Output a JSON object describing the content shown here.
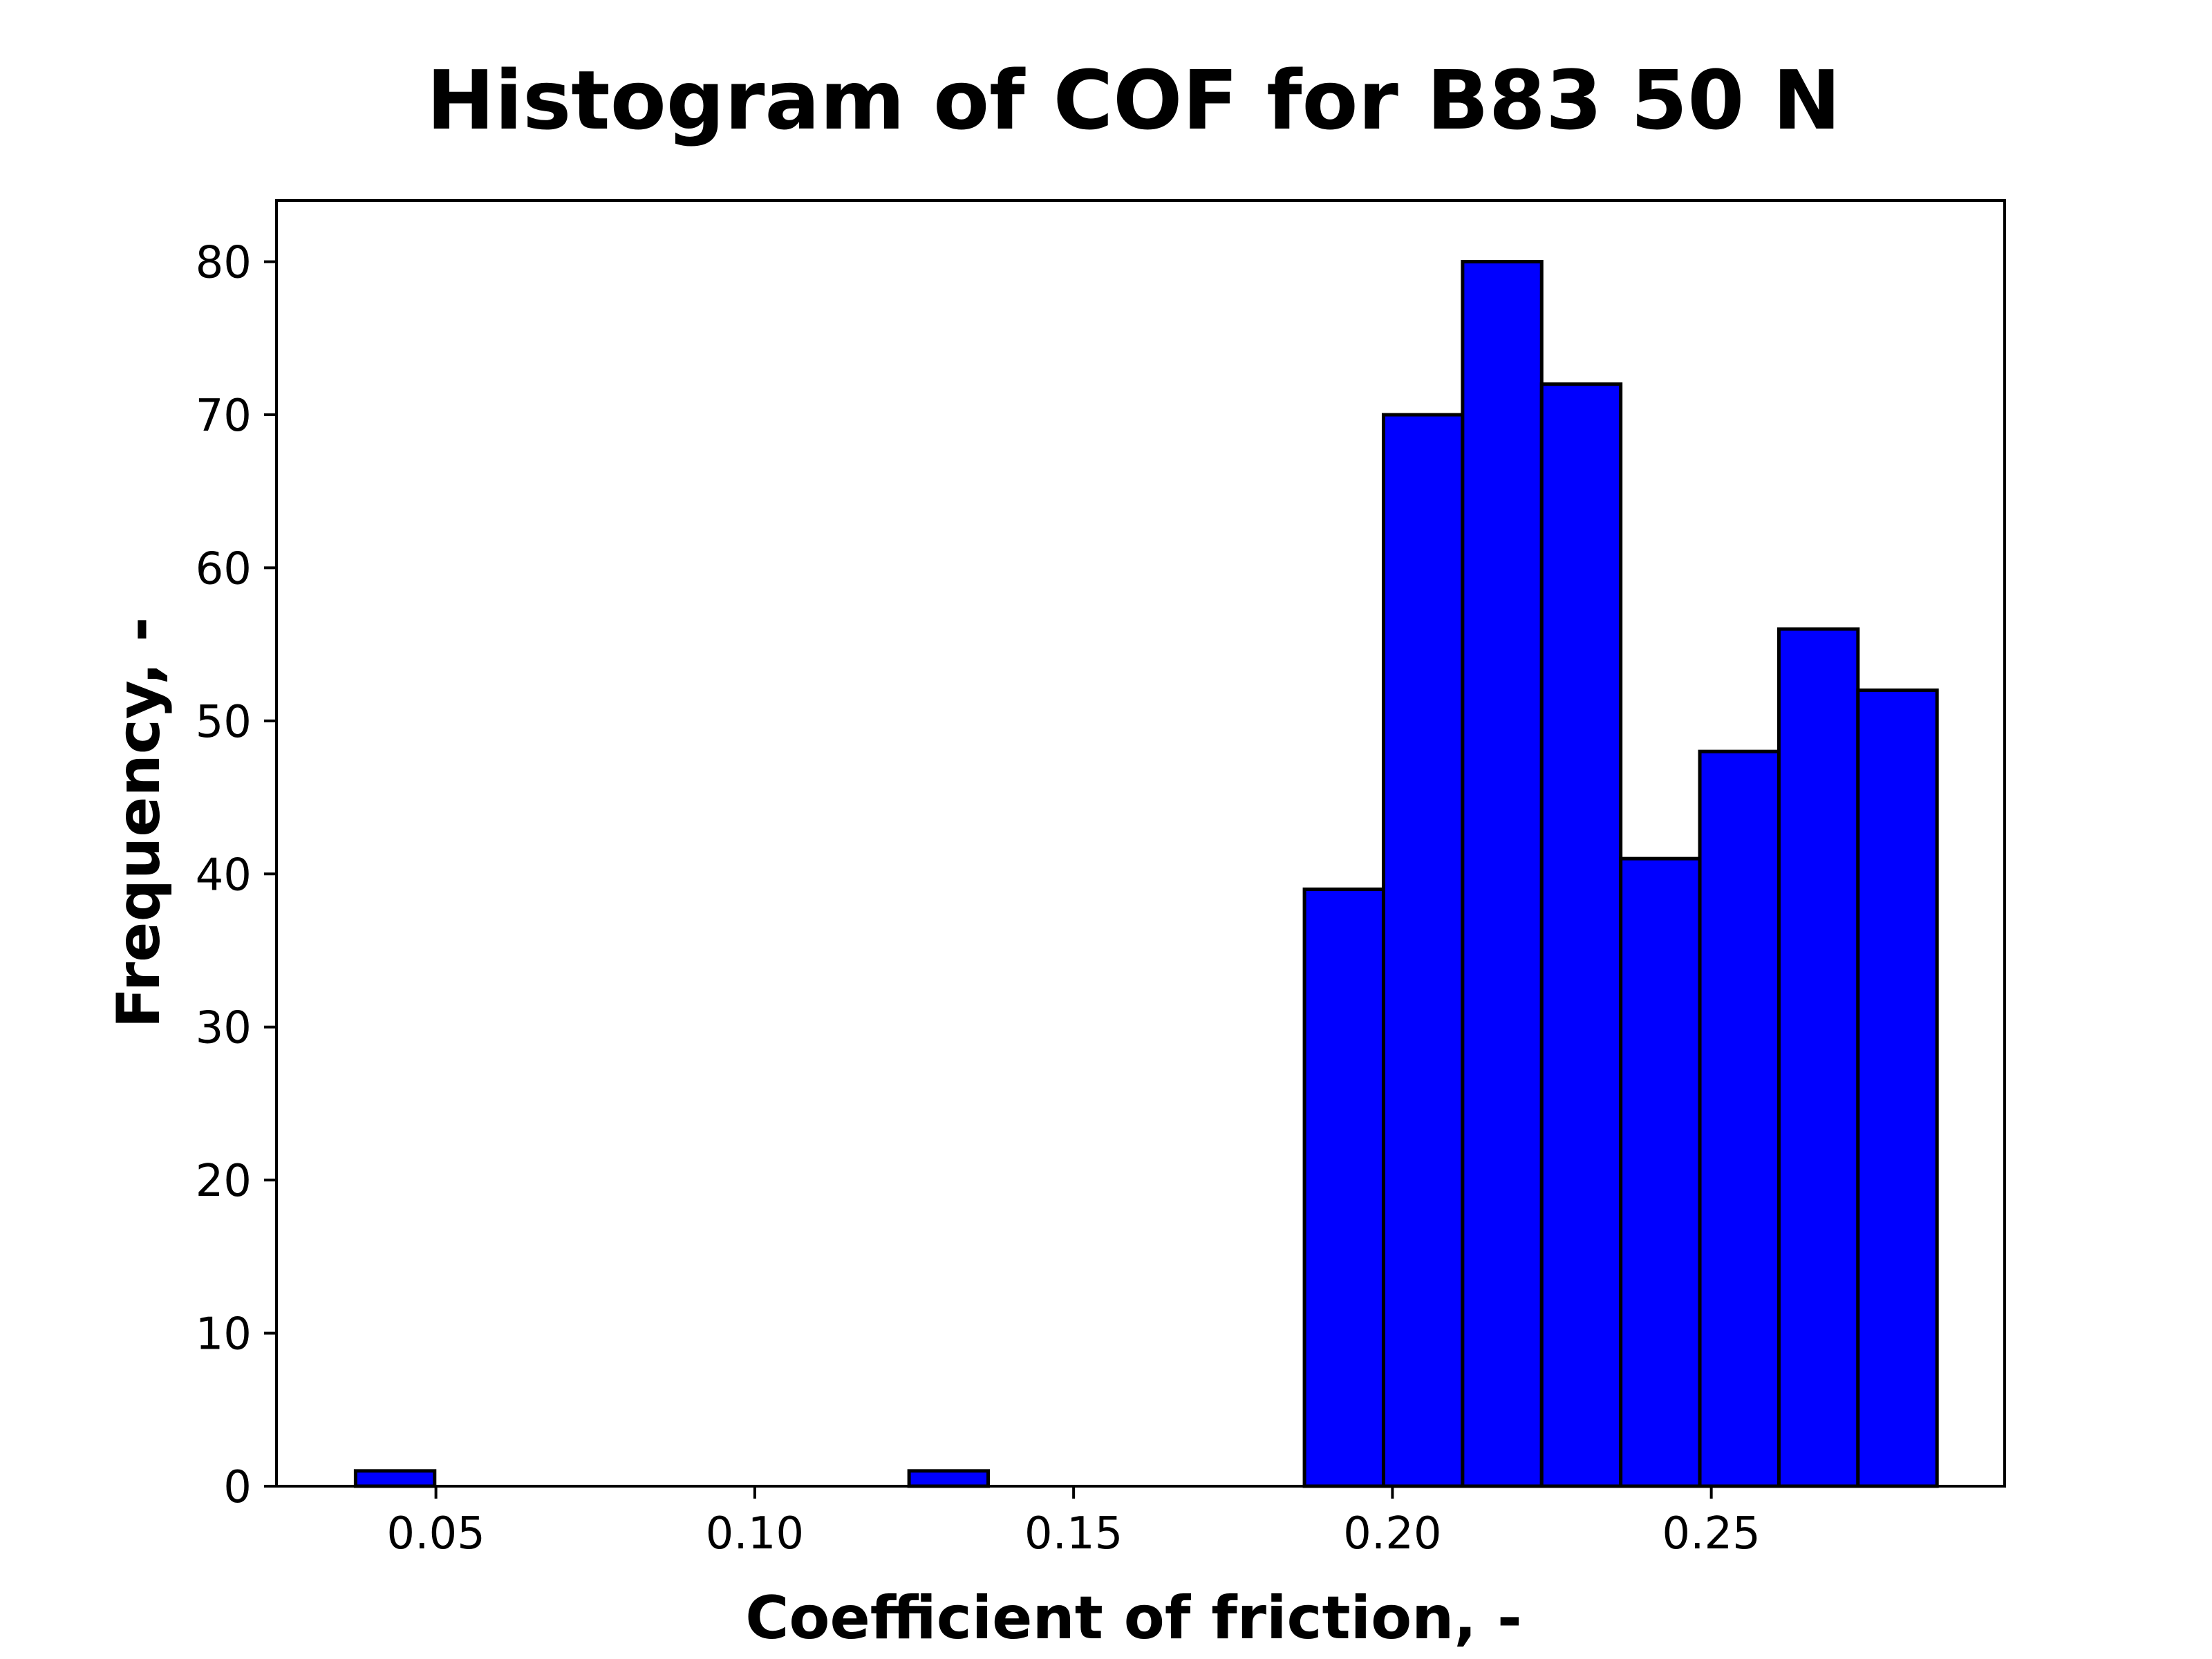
{
  "chart_data": {
    "type": "histogram",
    "title": "Histogram of COF for B83 50 N",
    "xlabel": "Coefficient of friction, -",
    "ylabel": "Frequency, -",
    "xlim": [
      0.025,
      0.296
    ],
    "ylim": [
      0,
      84
    ],
    "xticks": [
      0.05,
      0.1,
      0.15,
      0.2,
      0.25
    ],
    "xtick_labels": [
      "0.05",
      "0.10",
      "0.15",
      "0.20",
      "0.25"
    ],
    "yticks": [
      0,
      10,
      20,
      30,
      40,
      50,
      60,
      70,
      80
    ],
    "ytick_labels": [
      "0",
      "10",
      "20",
      "30",
      "40",
      "50",
      "60",
      "70",
      "80"
    ],
    "bins": [
      {
        "x0": 0.0374,
        "x1": 0.0498,
        "count": 1
      },
      {
        "x0": 0.0498,
        "x1": 0.0622,
        "count": 0
      },
      {
        "x0": 0.0622,
        "x1": 0.0746,
        "count": 0
      },
      {
        "x0": 0.0746,
        "x1": 0.087,
        "count": 0
      },
      {
        "x0": 0.087,
        "x1": 0.0994,
        "count": 0
      },
      {
        "x0": 0.0994,
        "x1": 0.1118,
        "count": 0
      },
      {
        "x0": 0.1118,
        "x1": 0.1242,
        "count": 0
      },
      {
        "x0": 0.1242,
        "x1": 0.1366,
        "count": 1
      },
      {
        "x0": 0.1366,
        "x1": 0.149,
        "count": 0
      },
      {
        "x0": 0.149,
        "x1": 0.1614,
        "count": 0
      },
      {
        "x0": 0.1614,
        "x1": 0.1738,
        "count": 0
      },
      {
        "x0": 0.1738,
        "x1": 0.1862,
        "count": 0
      },
      {
        "x0": 0.1862,
        "x1": 0.1986,
        "count": 39
      },
      {
        "x0": 0.1986,
        "x1": 0.211,
        "count": 70
      },
      {
        "x0": 0.211,
        "x1": 0.2234,
        "count": 80
      },
      {
        "x0": 0.2234,
        "x1": 0.2358,
        "count": 72
      },
      {
        "x0": 0.2358,
        "x1": 0.2482,
        "count": 41
      },
      {
        "x0": 0.2482,
        "x1": 0.2606,
        "count": 48
      },
      {
        "x0": 0.2606,
        "x1": 0.273,
        "count": 56
      },
      {
        "x0": 0.273,
        "x1": 0.2854,
        "count": 52
      }
    ],
    "bar_color": "#0000ff",
    "edge_color": "#000000",
    "grid": false,
    "legend": "none"
  }
}
